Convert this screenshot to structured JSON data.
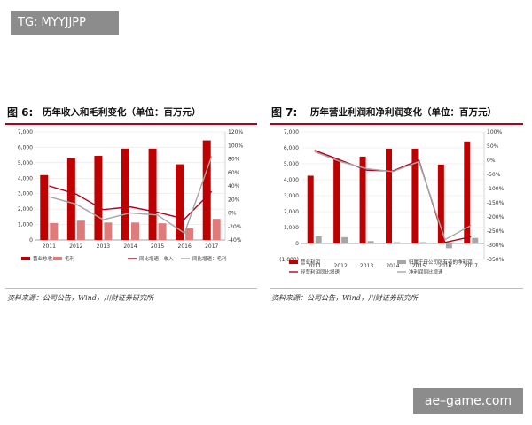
{
  "watermark_top": "TG: MYYJJPP",
  "watermark_bottom": "ae–game.com",
  "figures": [
    {
      "fig_no": "图 6:",
      "title": "历年收入和毛利变化（单位：百万元）",
      "source": "资料来源：公司公告，Wind，川财证券研究所"
    },
    {
      "fig_no": "图 7:",
      "title": "历年营业利润和净利润变化（单位：百万元）",
      "source": "资料来源：公司公告，Wind，川财证券研究所"
    }
  ],
  "chart_data": [
    {
      "type": "bar",
      "categories": [
        "2011",
        "2012",
        "2013",
        "2014",
        "2015",
        "2016",
        "2017"
      ],
      "left_axis": {
        "ylim": [
          0,
          7000
        ],
        "ticks": [
          "0",
          "1,000",
          "2,000",
          "3,000",
          "4,000",
          "5,000",
          "6,000",
          "7,000"
        ]
      },
      "right_axis": {
        "ylim": [
          -40,
          120
        ],
        "ticks": [
          "-40%",
          "-20%",
          "0%",
          "20%",
          "40%",
          "60%",
          "80%",
          "100%",
          "120%"
        ]
      },
      "series": [
        {
          "name": "营业总收入",
          "kind": "bar",
          "axis": "left",
          "color": "#c00000",
          "values": [
            4200,
            5300,
            5450,
            5920,
            5920,
            4900,
            6450
          ]
        },
        {
          "name": "毛利",
          "kind": "bar",
          "axis": "left",
          "color": "#e07b7b",
          "values": [
            1100,
            1250,
            1130,
            1130,
            1080,
            750,
            1370
          ]
        },
        {
          "name": "同比增速：收入",
          "kind": "line",
          "axis": "right",
          "color": "#b3001b",
          "values": [
            40,
            28,
            5,
            9,
            1,
            -9,
            32
          ]
        },
        {
          "name": "同比增速：毛利",
          "kind": "line",
          "axis": "right",
          "color": "#a6a6a6",
          "values": [
            24,
            13,
            -10,
            0,
            -3,
            -30,
            84
          ]
        }
      ]
    },
    {
      "type": "bar",
      "categories": [
        "2011",
        "2012",
        "2013",
        "2014",
        "2015",
        "2016",
        "2017"
      ],
      "left_axis": {
        "ylim": [
          -1000,
          7000
        ],
        "ticks": [
          "(1,000)",
          "0",
          "1,000",
          "2,000",
          "3,000",
          "4,000",
          "5,000",
          "6,000",
          "7,000"
        ]
      },
      "right_axis": {
        "ylim": [
          -350,
          100
        ],
        "ticks": [
          "-350%",
          "-300%",
          "-250%",
          "-200%",
          "-150%",
          "-100%",
          "-50%",
          "0%",
          "50%",
          "100%"
        ]
      },
      "series": [
        {
          "name": "营业利润",
          "kind": "bar",
          "axis": "left",
          "color": "#c00000",
          "values": [
            4250,
            5300,
            5450,
            5950,
            5950,
            4950,
            6400
          ]
        },
        {
          "name": "归属于母公司所有者的净利润",
          "kind": "bar",
          "axis": "left",
          "color": "#a6a6a6",
          "values": [
            450,
            400,
            150,
            80,
            80,
            -300,
            350
          ]
        },
        {
          "name": "经营利润同比增速",
          "kind": "line",
          "axis": "right",
          "color": "#b3001b",
          "values": [
            35,
            0,
            -35,
            -38,
            0,
            -290,
            -270
          ]
        },
        {
          "name": "净利润同比增速",
          "kind": "line",
          "axis": "right",
          "color": "#a6a6a6",
          "values": [
            30,
            -5,
            -30,
            -40,
            -5,
            -280,
            -230
          ]
        }
      ]
    }
  ]
}
